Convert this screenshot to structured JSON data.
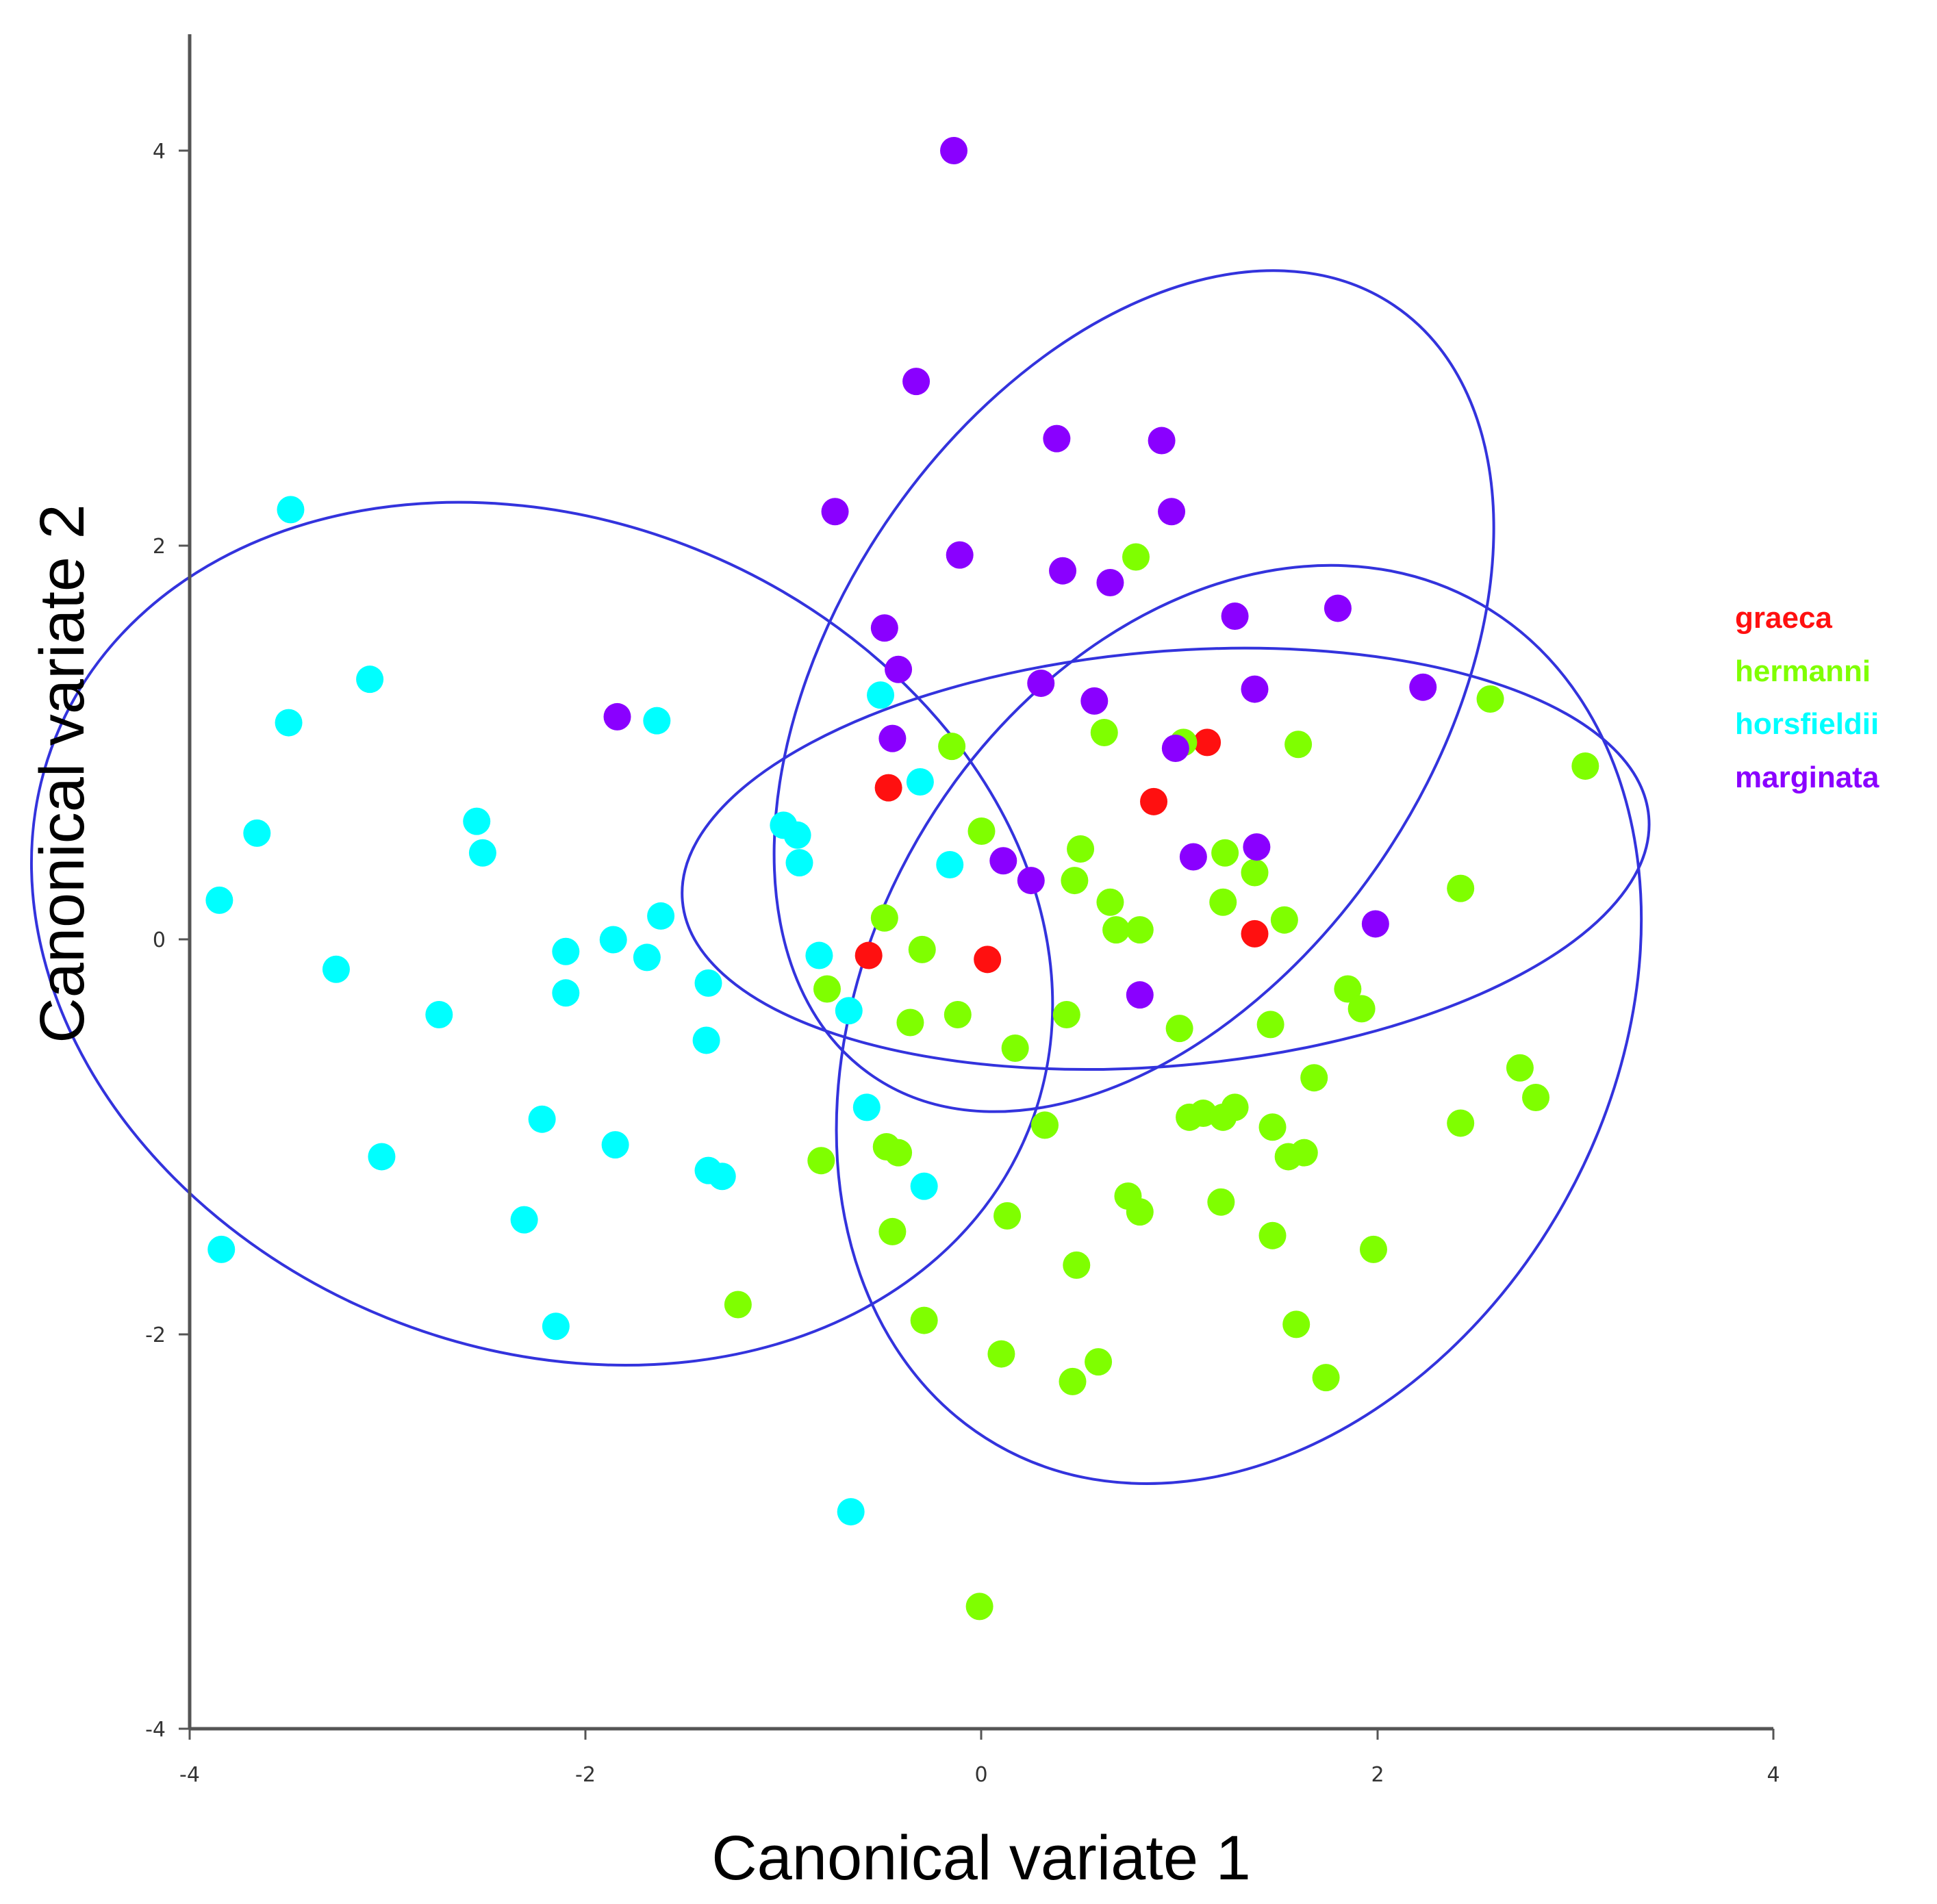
{
  "chart_data": {
    "type": "scatter",
    "title": "",
    "xlabel": "Canonical variate 1",
    "ylabel": "Canonical variate 2",
    "xlim": [
      -4,
      4
    ],
    "ylim": [
      -4,
      4.6
    ],
    "xticks": [
      -4,
      -2,
      0,
      2,
      4
    ],
    "yticks": [
      -4,
      -2,
      0,
      2,
      4
    ],
    "xtick_labels": [
      "-4",
      "-2",
      "0",
      "2",
      "4"
    ],
    "ytick_labels": [
      "-4",
      "-2",
      "0",
      "2",
      "4"
    ],
    "grid": false,
    "legend_position": "right",
    "series": [
      {
        "name": "graeca",
        "color": "#ff1010",
        "points": [
          [
            -0.47,
            0.77
          ],
          [
            0.87,
            0.7
          ],
          [
            1.14,
            1.0
          ],
          [
            -0.57,
            -0.08
          ],
          [
            0.03,
            -0.1
          ],
          [
            1.38,
            0.03
          ]
        ]
      },
      {
        "name": "hermanni",
        "color": "#7fff00",
        "points": [
          [
            0.78,
            1.94
          ],
          [
            0.62,
            1.05
          ],
          [
            -0.15,
            0.98
          ],
          [
            1.6,
            0.99
          ],
          [
            1.02,
            1.0
          ],
          [
            2.57,
            1.22
          ],
          [
            3.05,
            0.88
          ],
          [
            0.0,
            0.55
          ],
          [
            0.5,
            0.46
          ],
          [
            1.23,
            0.44
          ],
          [
            1.38,
            0.34
          ],
          [
            0.47,
            0.3
          ],
          [
            0.65,
            0.19
          ],
          [
            1.22,
            0.19
          ],
          [
            2.42,
            0.26
          ],
          [
            -0.49,
            0.11
          ],
          [
            0.68,
            0.05
          ],
          [
            0.8,
            0.05
          ],
          [
            1.53,
            0.1
          ],
          [
            -0.3,
            -0.05
          ],
          [
            -0.78,
            -0.25
          ],
          [
            -0.36,
            -0.42
          ],
          [
            -0.12,
            -0.38
          ],
          [
            0.43,
            -0.38
          ],
          [
            1.0,
            -0.45
          ],
          [
            1.46,
            -0.43
          ],
          [
            1.85,
            -0.25
          ],
          [
            1.92,
            -0.35
          ],
          [
            0.17,
            -0.55
          ],
          [
            1.68,
            -0.7
          ],
          [
            2.72,
            -0.65
          ],
          [
            2.8,
            -0.8
          ],
          [
            1.05,
            -0.9
          ],
          [
            1.12,
            -0.88
          ],
          [
            1.22,
            -0.9
          ],
          [
            1.28,
            -0.85
          ],
          [
            0.32,
            -0.94
          ],
          [
            1.47,
            -0.95
          ],
          [
            2.42,
            -0.93
          ],
          [
            1.55,
            -1.1
          ],
          [
            1.63,
            -1.08
          ],
          [
            -0.48,
            -1.05
          ],
          [
            -0.42,
            -1.08
          ],
          [
            -0.81,
            -1.12
          ],
          [
            0.74,
            -1.3
          ],
          [
            0.8,
            -1.38
          ],
          [
            1.21,
            -1.33
          ],
          [
            0.13,
            -1.4
          ],
          [
            -0.45,
            -1.48
          ],
          [
            1.47,
            -1.5
          ],
          [
            1.98,
            -1.57
          ],
          [
            0.48,
            -1.65
          ],
          [
            -1.23,
            -1.85
          ],
          [
            -0.29,
            -1.93
          ],
          [
            1.59,
            -1.95
          ],
          [
            0.1,
            -2.1
          ],
          [
            0.59,
            -2.14
          ],
          [
            0.46,
            -2.24
          ],
          [
            1.74,
            -2.22
          ],
          [
            -0.01,
            -3.38
          ]
        ]
      },
      {
        "name": "horsfieldii",
        "color": "#00ffff",
        "points": [
          [
            -3.49,
            2.18
          ],
          [
            -3.09,
            1.32
          ],
          [
            -3.5,
            1.1
          ],
          [
            -1.64,
            1.11
          ],
          [
            -0.51,
            1.24
          ],
          [
            -0.31,
            0.8
          ],
          [
            -3.66,
            0.54
          ],
          [
            -2.55,
            0.6
          ],
          [
            -2.52,
            0.44
          ],
          [
            -1.0,
            0.58
          ],
          [
            -0.93,
            0.53
          ],
          [
            -0.92,
            0.39
          ],
          [
            -0.16,
            0.38
          ],
          [
            -3.85,
            0.2
          ],
          [
            -1.62,
            0.12
          ],
          [
            -1.86,
            0.0
          ],
          [
            -2.1,
            -0.06
          ],
          [
            -1.69,
            -0.09
          ],
          [
            -0.82,
            -0.08
          ],
          [
            -3.26,
            -0.15
          ],
          [
            -2.1,
            -0.27
          ],
          [
            -1.38,
            -0.22
          ],
          [
            -0.67,
            -0.36
          ],
          [
            -2.74,
            -0.38
          ],
          [
            -1.39,
            -0.51
          ],
          [
            -0.58,
            -0.85
          ],
          [
            -2.22,
            -0.91
          ],
          [
            -1.85,
            -1.04
          ],
          [
            -3.03,
            -1.1
          ],
          [
            -1.38,
            -1.17
          ],
          [
            -1.31,
            -1.2
          ],
          [
            -0.29,
            -1.25
          ],
          [
            -2.31,
            -1.42
          ],
          [
            -3.84,
            -1.57
          ],
          [
            -2.15,
            -1.96
          ],
          [
            -0.66,
            -2.9
          ]
        ]
      },
      {
        "name": "marginata",
        "color": "#8a00ff",
        "points": [
          [
            -0.14,
            4.0
          ],
          [
            -0.33,
            2.83
          ],
          [
            0.38,
            2.54
          ],
          [
            0.91,
            2.53
          ],
          [
            -0.74,
            2.17
          ],
          [
            0.96,
            2.17
          ],
          [
            -0.11,
            1.95
          ],
          [
            0.41,
            1.87
          ],
          [
            0.65,
            1.81
          ],
          [
            -0.49,
            1.58
          ],
          [
            -0.42,
            1.37
          ],
          [
            1.28,
            1.64
          ],
          [
            1.8,
            1.68
          ],
          [
            0.3,
            1.3
          ],
          [
            0.57,
            1.21
          ],
          [
            1.38,
            1.27
          ],
          [
            2.23,
            1.28
          ],
          [
            -1.84,
            1.13
          ],
          [
            -0.45,
            1.02
          ],
          [
            0.98,
            0.97
          ],
          [
            0.11,
            0.4
          ],
          [
            0.25,
            0.3
          ],
          [
            1.07,
            0.42
          ],
          [
            1.39,
            0.47
          ],
          [
            0.8,
            -0.28
          ],
          [
            1.99,
            0.08
          ]
        ]
      }
    ],
    "ellipses": [
      {
        "name": "marginata",
        "cx": 0.77,
        "cy": 1.26,
        "rx": 2.35,
        "ry": 1.52,
        "angle_deg": 56
      },
      {
        "name": "horsfieldii",
        "cx": -2.22,
        "cy": 0.03,
        "rx": 2.65,
        "ry": 2.1,
        "angle_deg": -22
      },
      {
        "name": "hermanni",
        "cx": 1.3,
        "cy": -0.43,
        "rx": 2.45,
        "ry": 1.88,
        "angle_deg": 60
      },
      {
        "name": "graeca",
        "cx": 0.93,
        "cy": 0.41,
        "rx": 2.45,
        "ry": 1.05,
        "angle_deg": 5
      }
    ],
    "ellipse_color": "#3333dd"
  }
}
